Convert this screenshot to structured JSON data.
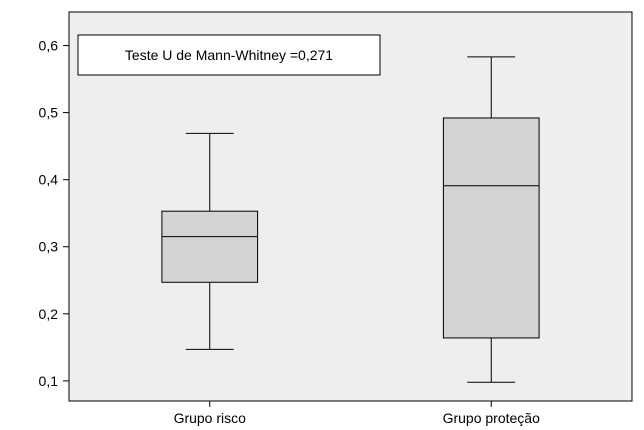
{
  "chart_data": {
    "type": "boxplot",
    "title": "",
    "xlabel": "",
    "ylabel": "",
    "ylim": [
      0.07,
      0.65
    ],
    "y_ticks": [
      {
        "value": 0.1,
        "label": "0,1"
      },
      {
        "value": 0.2,
        "label": "0,2"
      },
      {
        "value": 0.3,
        "label": "0,3"
      },
      {
        "value": 0.4,
        "label": "0,4"
      },
      {
        "value": 0.5,
        "label": "0,5"
      },
      {
        "value": 0.6,
        "label": "0,6"
      }
    ],
    "categories": [
      "Grupo risco",
      "Grupo proteção"
    ],
    "boxes": [
      {
        "category": "Grupo risco",
        "min": 0.147,
        "q1": 0.247,
        "median": 0.315,
        "q3": 0.353,
        "max": 0.469
      },
      {
        "category": "Grupo proteção",
        "min": 0.098,
        "q1": 0.164,
        "median": 0.391,
        "q3": 0.492,
        "max": 0.583
      }
    ],
    "annotation": "Teste U de Mann-Whitney =0,271",
    "grid": false,
    "colors": {
      "box_fill": "#d3d3d3",
      "plot_background": "#eeeeee",
      "line": "#000000"
    }
  }
}
